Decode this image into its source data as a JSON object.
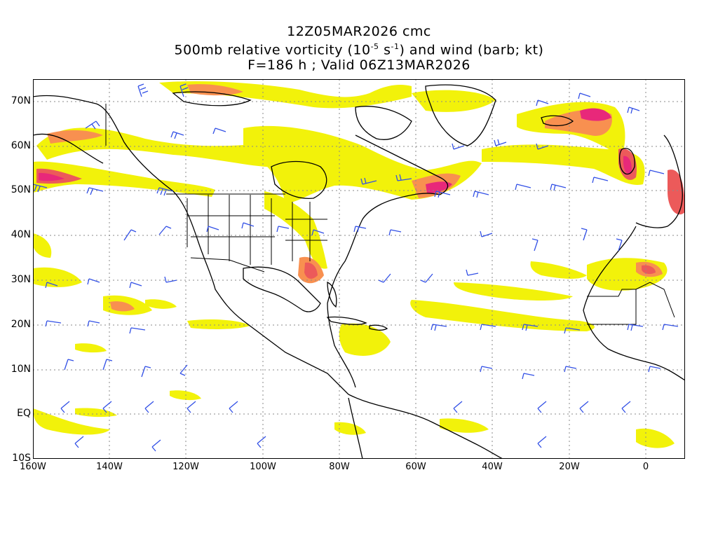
{
  "title": {
    "line1": "12Z05MAR2026 cmc",
    "line2_prefix": "500mb relative vorticity (10",
    "line2_exp1": "-5",
    "line2_mid": " s",
    "line2_exp2": "-1",
    "line2_suffix": ") and wind (barb; kt)",
    "line3": "F=186 h ; Valid 06Z13MAR2026"
  },
  "axes": {
    "lat_labels": [
      "70N",
      "60N",
      "50N",
      "40N",
      "30N",
      "20N",
      "10N",
      "EQ",
      "10S"
    ],
    "lon_labels": [
      "160W",
      "140W",
      "120W",
      "100W",
      "80W",
      "60W",
      "40W",
      "20W",
      "0"
    ]
  },
  "colors": {
    "yellow": "#f2f20a",
    "light_orange": "#fcc83c",
    "orange": "#f89050",
    "red": "#ec5a5a",
    "magenta": "#e8287a",
    "barbs": "#3250e6",
    "coast": "#000000",
    "grid": "#8a8a8a"
  }
}
